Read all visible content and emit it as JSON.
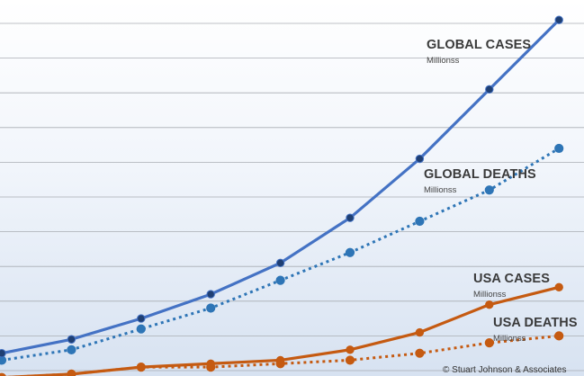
{
  "chart_data": {
    "type": "line",
    "x": [
      1,
      2,
      3,
      4,
      5,
      6,
      7,
      8,
      9
    ],
    "ylim": [
      0,
      10
    ],
    "grid": true,
    "series": [
      {
        "name": "GLOBAL CASES",
        "unit": "Millionss",
        "color": "#4472c4",
        "marker_color": "#1f3f73",
        "style": "solid",
        "values": [
          0.5,
          0.9,
          1.5,
          2.2,
          3.1,
          4.4,
          6.1,
          8.1,
          10.1
        ]
      },
      {
        "name": "GLOBAL DEATHS",
        "unit": "Millionss",
        "color": "#2e75b6",
        "marker_color": "#2e75b6",
        "style": "dotted",
        "values": [
          0.3,
          0.6,
          1.2,
          1.8,
          2.6,
          3.4,
          4.3,
          5.2,
          6.4
        ]
      },
      {
        "name": "USA CASES",
        "unit": "Millionss",
        "color": "#c55a11",
        "marker_color": "#c55a11",
        "style": "solid",
        "values": [
          -0.2,
          -0.1,
          0.1,
          0.2,
          0.3,
          0.6,
          1.1,
          1.9,
          2.4
        ]
      },
      {
        "name": "USA DEATHS",
        "unit": "Millionss",
        "color": "#c55a11",
        "marker_color": "#c55a11",
        "style": "dotted",
        "values": [
          -0.2,
          -0.1,
          0.1,
          0.1,
          0.2,
          0.3,
          0.5,
          0.8,
          1.0
        ]
      }
    ]
  },
  "credit": "© Stuart Johnson & Associates"
}
